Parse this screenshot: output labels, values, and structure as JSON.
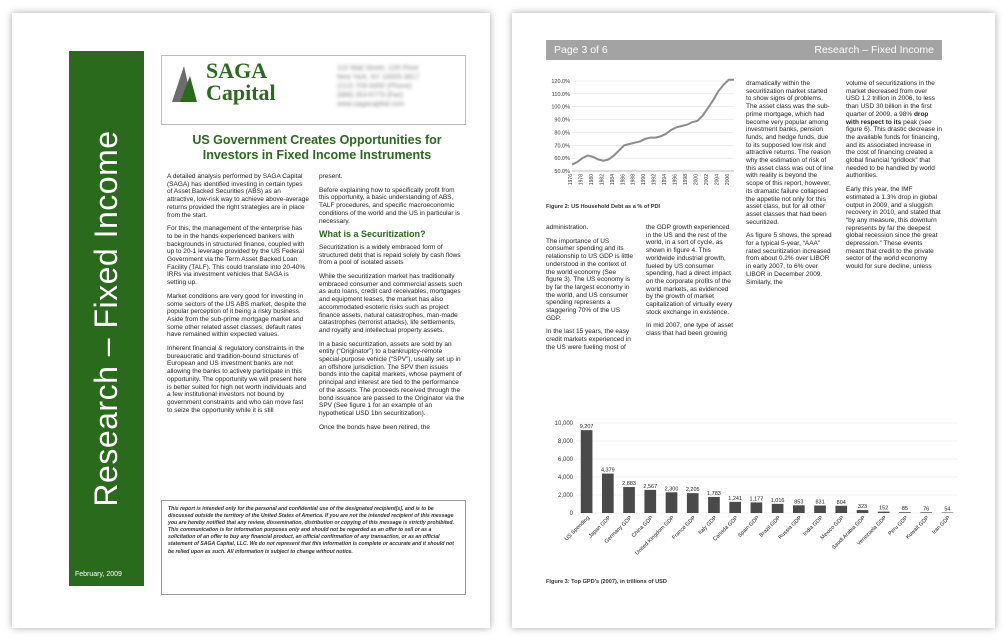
{
  "page1": {
    "vertical_title": "Research – Fixed Income",
    "date": "February, 2009",
    "logo": {
      "line1": "SAGA",
      "line2": "Capital"
    },
    "address_lines": [
      "110 Wall Street, 11th Floor",
      "New York, NY 10005-3817",
      "(212) 709-9400 (Phone)",
      "(888) 353-5779 (Fax)",
      "www.sagacapital.com"
    ],
    "headline": "US Government Creates Opportunities for Investors in Fixed Income Instruments",
    "col1_paragraphs": [
      "A detailed analysis performed by SAGA Capital (SAGA) has identified investing in certain types of Asset Backed Securities (ABS) as an attractive, low-risk way to achieve above-average returns provided the right strategies are in place from the start.",
      "For this, the management of the enterprise has to be in the hands experienced bankers with backgrounds in structured finance, coupled with up to 20-1 leverage provided by the US Federal Government via the Term Asset Backed Loan Facility (TALF). This could translate into 20-40% IRRs via investment vehicles that SAGA is setting up.",
      "Market conditions are very good for investing in some sectors of the US ABS market, despite the popular perception of it being a risky business. Aside from the sub-prime mortgage market and some other related asset classes, default rates have remained within expected values.",
      "Inherent financial & regulatory constraints in the bureaucratic and tradition-bound structures of European and US investment banks are not allowing the banks to actively participate in this opportunity. The opportunity we will present here is better suited for high net worth individuals and a few institutional investors not bound by government constraints and who can move fast to seize the opportunity while it is still"
    ],
    "col2_top": "present.",
    "col2_intro": "Before explaining how to specifically profit from this opportunity, a basic understanding of ABS, TALF procedures, and specific macroeconomic conditions of the world and the US in particular is necessary.",
    "col2_heading": "What is a Securitization?",
    "col2_paragraphs": [
      "Securitization is a widely embraced form of structured debt that is repaid solely by cash flows from a pool of isolated assets",
      "While the securitization market has traditionally embraced consumer and commercial assets such as auto loans, credit card receivables, mortgages and equipment leases, the market has also accommodated esoteric risks such as project finance assets, natural catastrophes, man-made catastrophes (terrorist attacks), life settlements, and royalty and intellectual property assets.",
      "In a basic securitization, assets are sold by an entity (“Originator”) to a bankruptcy-remote special-purpose vehicle (“SPV”), usually set up in an offshore jurisdiction. The SPV then issues bonds into the capital markets, whose payment of principal and interest are tied to the performance of the assets. The proceeds received through the bond issuance are passed to the Originator via the SPV (See figure 1 for an example of an hypothetical USD 1bn securitization).",
      "Once the bonds have been retired, the"
    ],
    "disclaimer": "This report is intended only for the personal and confidential use of the designated recipient[s], and is to be discussed outside the territory of the United States of America.  If you are not the intended recipient of this message you are hereby notified that any review, dissemination, distribution or copying of this message is strictly prohibited. This communication is for information purposes only and should not be regarded as an offer to sell or as a solicitation of an offer to buy any financial product, an official confirmation of any transaction, or as an official statement of SAGA Capital, LLC. We do not represent that this information is complete or accurate and it should not be relied upon as such. All information is subject to change without notice."
  },
  "page2": {
    "page_label": "Page 3 of 6",
    "section_title": "Research – Fixed Income",
    "fig2_caption": "Figure 2: US Household Debt as a % of PDI",
    "fig3_caption": "Figure 3: Top GPD’s (2007), in trillions of USD",
    "col_a": [
      "administration.",
      "The importance of US consumer spending and its relationship to US GDP is little understood in the context of the world economy (See figure 3).  The US economy is by far the largest economy in the world, and US consumer spending represents a staggering 70% of the US GDP.",
      "In the last 15 years, the easy credit markets experienced in the US were fueling most of"
    ],
    "col_b": [
      "the GDP growth experienced in the US and the rest of the world, in a sort of cycle, as shown in figure 4. This worldwide industrial growth, fueled by US consumer spending, had a direct impact on the corporate profits of the world markets, as evidenced by the growth of market capitalization of virtually every stock exchange in existence.",
      "In mid 2007, one type of asset class that had been growing"
    ],
    "col_c": [
      "dramatically within the securitization market started to show signs of problems. The asset class was the sub-prime mortgage, which had become very popular among investment banks, pension funds, and hedge funds, due to its supposed low risk and attractive returns. The reason why the estimation of risk of this asset class was out of line with reality is beyond the scope of this report, however, its dramatic failure collapsed the appetite not only for this asset class, but for all other asset classes that had been securitized.",
      "As figure 5 shows, the spread for a typical 5-year, “AAA” rated securitization increased from about 0.2% over LIBOR in early 2007, to 6% over LIBOR in December 2009.  Similarly, the"
    ],
    "col_d_1": "volume of securitizations in the market decreased from over USD 1.2 trillion in 2006, to less than USD 30 billion in the first quarter of 2009, a 98%",
    "col_d_bold": "drop with respect to its",
    "col_d_2": "peak (see figure 6). This drastic decrease in the available funds for financing, and its associated increase in the cost of financing created a global financial “gridlock” that needed to be handled by world authorities.",
    "col_d_3": "Early this year, the IMF estimated a 1.3% drop in global output in 2009, and a sluggish recovery in 2010, and stated that “by any measure, this downturn represents by far the deepest global recession since the great depression.” These events meant that credit to the private sector of the world economy would for sure decline, unless"
  },
  "chart_data": [
    {
      "type": "line",
      "title": "Figure 2: US Household Debt as a % of PDI",
      "x": [
        1976,
        1977,
        1978,
        1979,
        1980,
        1981,
        1982,
        1983,
        1984,
        1985,
        1986,
        1987,
        1988,
        1989,
        1990,
        1991,
        1992,
        1993,
        1994,
        1995,
        1996,
        1997,
        1998,
        1999,
        2000,
        2001,
        2002,
        2003,
        2004,
        2005,
        2006,
        2007
      ],
      "x_tick_labels": [
        "1976",
        "1978",
        "1980",
        "1982",
        "1984",
        "1986",
        "1988",
        "1990",
        "1992",
        "1994",
        "1996",
        "1998",
        "2000",
        "2002",
        "2004",
        "2006"
      ],
      "y": [
        55,
        57,
        60,
        62,
        61,
        59,
        58,
        59,
        62,
        66,
        70,
        71,
        72,
        73,
        75,
        76,
        76,
        77,
        79,
        82,
        84,
        85,
        86,
        88,
        89,
        93,
        99,
        105,
        112,
        117,
        121,
        121
      ],
      "y_tick_labels": [
        "50.0%",
        "60.0%",
        "70.0%",
        "80.0%",
        "90.0%",
        "100.0%",
        "110.0%",
        "120.0%"
      ],
      "ylim": [
        50,
        120
      ],
      "color": "#8c8c8c"
    },
    {
      "type": "bar",
      "title": "Figure 3: Top GPD’s (2007), in trillions of USD",
      "categories": [
        "US Spending",
        "Japan GDP",
        "Germany GDP",
        "China GDP",
        "United Kingdom GDP",
        "France GDP",
        "Italy GDP",
        "Canada GDP",
        "Spain GDP",
        "Brazil GDP",
        "Russia GDP",
        "India GDP",
        "Mexico GDP",
        "Saudi Arabia GDP",
        "Venezuela GDP",
        "Peru GDP",
        "Kuwait GDP",
        "Iran GDP"
      ],
      "values": [
        9207,
        4379,
        2883,
        2567,
        2300,
        2205,
        1783,
        1241,
        1177,
        1016,
        853,
        831,
        804,
        323,
        152,
        85,
        76,
        54
      ],
      "labels": [
        "9,207",
        "4,379",
        "2,883",
        "2,567",
        "2,300",
        "2,205",
        "1,783",
        "1,241",
        "1,177",
        "1,016",
        "853",
        "831",
        "804",
        "323",
        "152",
        "85",
        "76",
        "54"
      ],
      "y_tick_labels": [
        "0",
        "2,000",
        "4,000",
        "6,000",
        "8,000",
        "10,000"
      ],
      "ylim": [
        0,
        10000
      ],
      "color": "#4a4a4a"
    }
  ],
  "colors": {
    "brand_green": "#2a6a1d",
    "header_gray": "#a3a3a3"
  },
  "icons": {
    "logo_mark": "saga-logo-mark-icon"
  }
}
